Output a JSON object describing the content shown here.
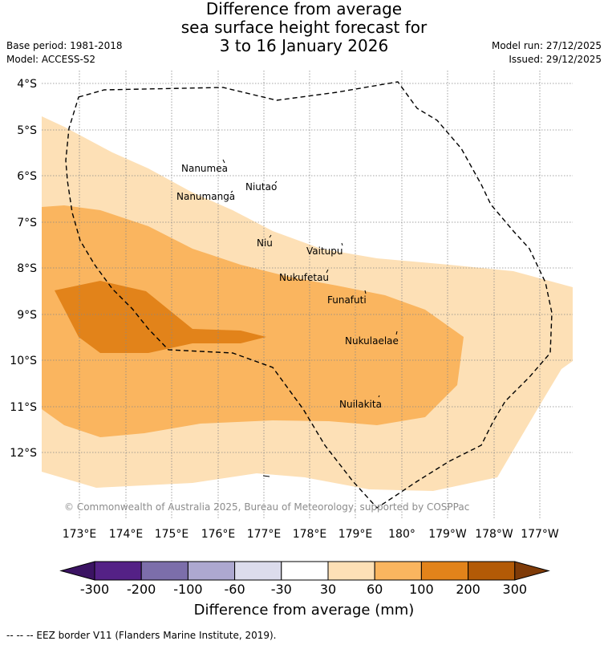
{
  "title": {
    "line1": "Difference from average",
    "line2": "sea surface height forecast for",
    "line3": "3 to 16 January 2026"
  },
  "meta": {
    "base_period": "Base period: 1981-2018",
    "model": "Model: ACCESS-S2",
    "model_run": "Model run: 27/12/2025",
    "issued": "Issued: 29/12/2025"
  },
  "map": {
    "lat_labels": [
      "4°S",
      "5°S",
      "6°S",
      "7°S",
      "8°S",
      "9°S",
      "10°S",
      "11°S",
      "12°S"
    ],
    "lon_labels": [
      "173°E",
      "174°E",
      "175°E",
      "176°E",
      "177°E",
      "178°E",
      "179°E",
      "180°",
      "179°W",
      "178°W",
      "177°W"
    ],
    "islands": [
      "Nanumea",
      "Nanumanga",
      "Niutao",
      "Niu",
      "Vaitupu",
      "Nukufetau",
      "Funafuti",
      "Nukulaelae",
      "Nuilakita"
    ],
    "copyright": "© Commonwealth of Australia 2025, Bureau of Meteorology, supported by COSPPac"
  },
  "colorbar": {
    "labels": [
      "-300",
      "-200",
      "-100",
      "-60",
      "-30",
      "30",
      "60",
      "100",
      "200",
      "300"
    ],
    "colors": [
      "#3b1363",
      "#542186",
      "#7c6eaa",
      "#ada8d0",
      "#dcdcec",
      "#ffffff",
      "#fde0b6",
      "#fab55f",
      "#e2831a",
      "#b35a06",
      "#7f3b08"
    ],
    "title": "Difference from average (mm)"
  },
  "footer": "-- -- -- EEZ border V11 (Flanders Marine Institute, 2019)."
}
